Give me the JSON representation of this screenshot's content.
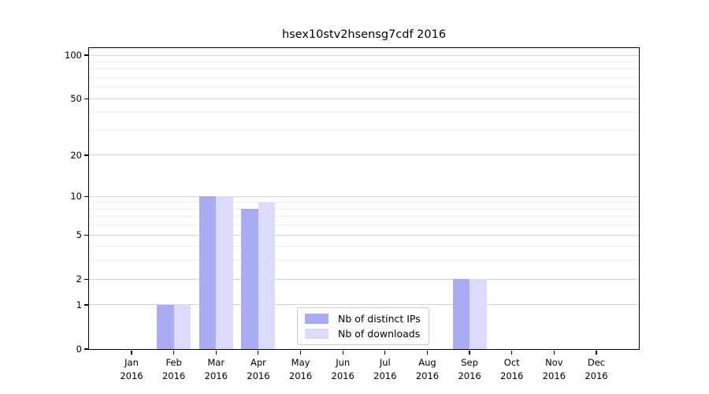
{
  "chart_data": {
    "type": "bar",
    "title": "hsex10stv2hsensg7cdf 2016",
    "categories": [
      "Jan 2016",
      "Feb 2016",
      "Mar 2016",
      "Apr 2016",
      "May 2016",
      "Jun 2016",
      "Jul 2016",
      "Aug 2016",
      "Sep 2016",
      "Oct 2016",
      "Nov 2016",
      "Dec 2016"
    ],
    "series": [
      {
        "name": "Nb of distinct IPs",
        "color": "#aaaaf5",
        "values": [
          0,
          1,
          10,
          8,
          0,
          0,
          0,
          0,
          2,
          0,
          0,
          0
        ]
      },
      {
        "name": "Nb of downloads",
        "color": "#dbdbfa",
        "values": [
          0,
          1,
          10,
          9,
          0,
          0,
          0,
          0,
          2,
          0,
          0,
          0
        ]
      }
    ],
    "y_axis": {
      "scale": "log1p",
      "major_ticks": [
        0,
        1,
        2,
        5,
        10,
        20,
        50,
        100
      ],
      "minor_gridlines": [
        3,
        4,
        6,
        7,
        8,
        9,
        30,
        40,
        60,
        70,
        80,
        90
      ],
      "top_value": 112
    },
    "x_axis": {
      "tick_label_lines": 2
    },
    "legend": {
      "position": "lower center"
    },
    "grid": true,
    "colors": {
      "major_grid": "#d4d4d4",
      "minor_grid": "#ededed",
      "axis": "#000000",
      "background": "#ffffff"
    }
  }
}
